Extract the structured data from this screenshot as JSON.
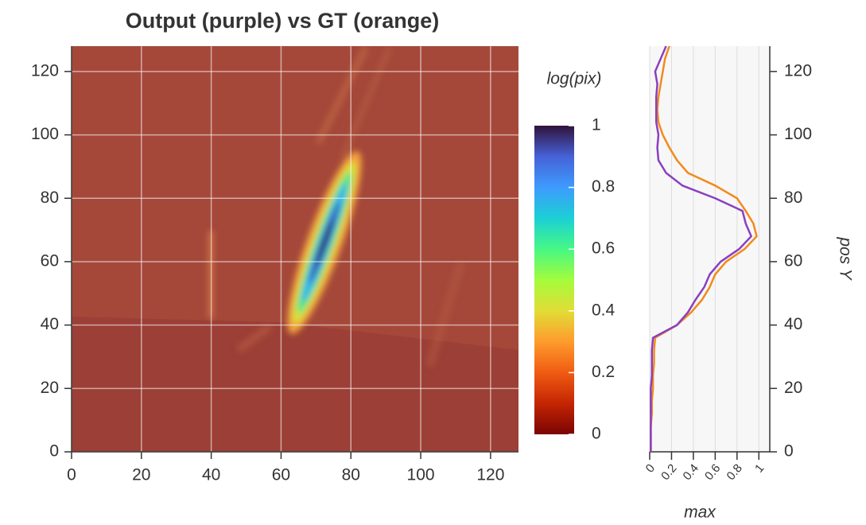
{
  "chart_data": [
    {
      "type": "heatmap",
      "title": "Output (purple) vs GT (orange)",
      "xlim": [
        0,
        128
      ],
      "ylim": [
        0,
        128
      ],
      "xticks": [
        0,
        20,
        40,
        60,
        80,
        100,
        120
      ],
      "yticks": [
        0,
        20,
        40,
        60,
        80,
        100,
        120
      ],
      "grid": true
    },
    {
      "type": "colorbar",
      "title": "log(pix)",
      "ylim": [
        0,
        1
      ],
      "yticks": [
        0,
        0.2,
        0.4,
        0.6,
        0.8,
        1
      ]
    },
    {
      "type": "line",
      "xlabel": "max",
      "ylabel": "pos Y",
      "orientation": "vertical",
      "xlim": [
        0,
        1.1
      ],
      "ylim": [
        0,
        128
      ],
      "xticks": [
        0,
        0.2,
        0.4,
        0.6,
        0.8,
        1
      ],
      "yticks": [
        0,
        20,
        40,
        60,
        80,
        100,
        120
      ],
      "grid": true,
      "x": [
        0,
        4,
        8,
        12,
        16,
        20,
        24,
        28,
        32,
        36,
        40,
        44,
        48,
        52,
        56,
        60,
        64,
        68,
        72,
        76,
        80,
        84,
        88,
        92,
        96,
        100,
        104,
        108,
        112,
        116,
        120,
        124,
        128
      ],
      "series": [
        {
          "color": "#f28a1c",
          "values": [
            0.01,
            0.01,
            0.01,
            0.02,
            0.02,
            0.03,
            0.03,
            0.04,
            0.04,
            0.05,
            0.25,
            0.38,
            0.48,
            0.55,
            0.6,
            0.7,
            0.87,
            0.98,
            0.95,
            0.88,
            0.8,
            0.6,
            0.35,
            0.25,
            0.18,
            0.12,
            0.08,
            0.07,
            0.08,
            0.1,
            0.12,
            0.14,
            0.18
          ]
        },
        {
          "color": "#8a3fc0",
          "values": [
            0.01,
            0.01,
            0.01,
            0.01,
            0.01,
            0.01,
            0.02,
            0.02,
            0.02,
            0.03,
            0.25,
            0.35,
            0.42,
            0.5,
            0.55,
            0.65,
            0.82,
            0.93,
            0.88,
            0.85,
            0.6,
            0.3,
            0.15,
            0.08,
            0.07,
            0.08,
            0.06,
            0.06,
            0.06,
            0.07,
            0.05,
            0.1,
            0.15
          ]
        }
      ]
    }
  ]
}
